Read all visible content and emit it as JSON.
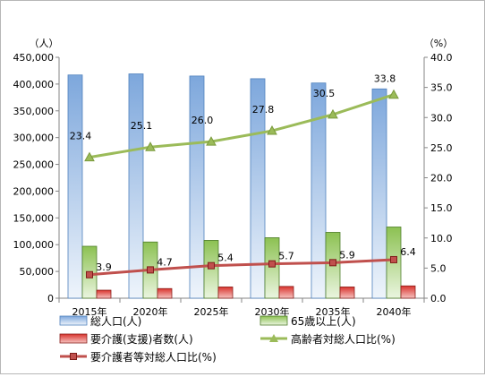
{
  "chart_data": {
    "type": "bar",
    "categories": [
      "2015年",
      "2020年",
      "2025年",
      "2030年",
      "2035年",
      "2040年"
    ],
    "y_left": {
      "unit": "（人）",
      "ylim": [
        0,
        450000
      ],
      "ticks": [
        "0",
        "50,000",
        "100,000",
        "150,000",
        "200,000",
        "250,000",
        "300,000",
        "350,000",
        "400,000",
        "450,000"
      ]
    },
    "y_right": {
      "unit": "（%）",
      "ylim": [
        0,
        40
      ],
      "ticks": [
        "0.0",
        "5.0",
        "10.0",
        "15.0",
        "20.0",
        "25.0",
        "30.0",
        "35.0",
        "40.0"
      ]
    },
    "series": [
      {
        "name": "総人口(人)",
        "type": "bar",
        "axis": "left",
        "color": "#4f81bd",
        "values": [
          417000,
          419000,
          415000,
          410000,
          402000,
          391000
        ]
      },
      {
        "name": "65歳以上(人)",
        "type": "bar",
        "axis": "left",
        "color": "#9bbb59",
        "values": [
          97000,
          105000,
          108000,
          113000,
          123000,
          133000
        ]
      },
      {
        "name": "要介護(支援)者数(人)",
        "type": "bar",
        "axis": "left",
        "color": "#c0504d",
        "values": [
          15000,
          18000,
          21000,
          22000,
          21000,
          23000
        ]
      },
      {
        "name": "高齢者対総人口比(%)",
        "type": "line",
        "axis": "right",
        "color": "#9bbb59",
        "marker": "triangle",
        "values": [
          23.4,
          25.1,
          26.0,
          27.8,
          30.5,
          33.8
        ],
        "labels": [
          "23.4",
          "25.1",
          "26.0",
          "27.8",
          "30.5",
          "33.8"
        ]
      },
      {
        "name": "要介護者等対総人口比(%)",
        "type": "line",
        "axis": "right",
        "color": "#c0504d",
        "marker": "square",
        "values": [
          3.9,
          4.7,
          5.4,
          5.7,
          5.9,
          6.4
        ],
        "labels": [
          "3.9",
          "4.7",
          "5.4",
          "5.7",
          "5.9",
          "6.4"
        ]
      }
    ],
    "legend": {
      "placement": "bottom",
      "entries": [
        "総人口(人)",
        "65歳以上(人)",
        "要介護(支援)者数(人)",
        "高齢者対総人口比(%)",
        "要介護者等対総人口比(%)"
      ]
    },
    "grid": false
  }
}
